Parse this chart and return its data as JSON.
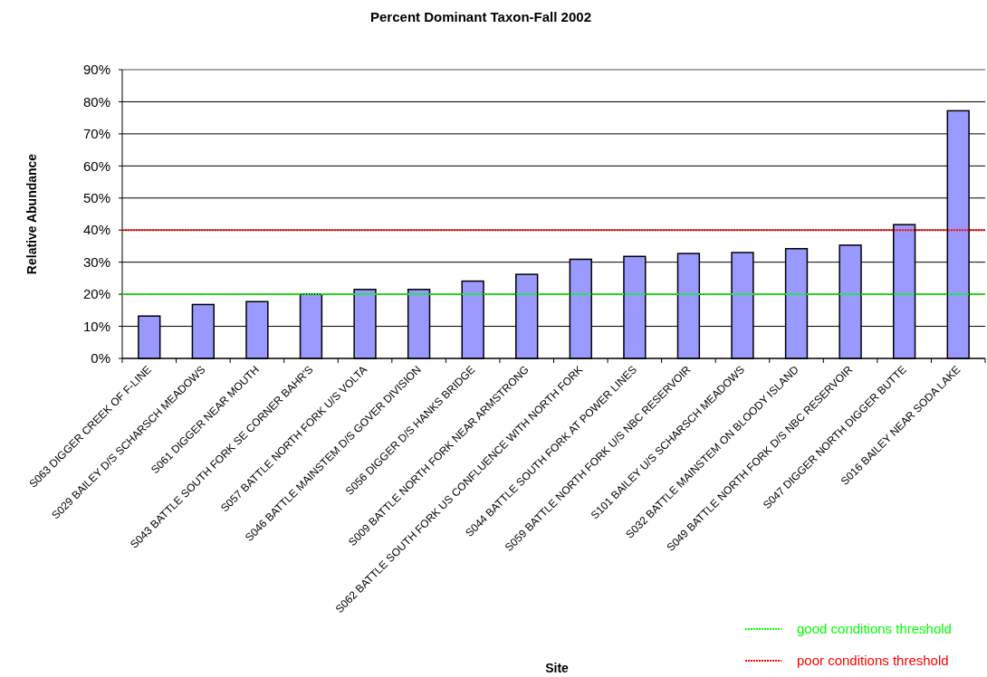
{
  "chart_data": {
    "type": "bar",
    "title": "Percent Dominant Taxon-Fall 2002",
    "xlabel": "Site",
    "ylabel": "Relative Abundance",
    "categories": [
      "S063 DIGGER CREEK OF F-LINE",
      "S029 BAILEY D/S SCHARSCH MEADOWS",
      "S061 DIGGER NEAR MOUTH",
      "S043 BATTLE SOUTH FORK SE CORNER BAHR'S",
      "S057 BATTLE NORTH FORK U/S VOLTA",
      "S046 BATTLE MAINSTEM D/S GOVER DIVISION",
      "S056 DIGGER D/S HANKS BRIDGE",
      "S009 BATTLE NORTH FORK NEAR ARMSTRONG",
      "S062 BATTLE SOUTH FORK US CONFLUENCE WITH NORTH FORK",
      "S044 BATTLE SOUTH FORK AT POWER LINES",
      "S059 BATTLE NORTH FORK U/S NBC RESERVOIR",
      "S101 BAILEY U/S SCHARSCH MEADOWS",
      "S032 BATTLE MAINSTEM ON BLOODY ISLAND",
      "S049 BATTLE NORTH FORK D/S NBC RESERVOIR",
      "S047 DIGGER NORTH DIGGER BUTTE",
      "S016 BAILEY NEAR SODA LAKE"
    ],
    "values": [
      13.2,
      16.8,
      17.7,
      20.0,
      21.5,
      21.5,
      24.1,
      26.2,
      30.9,
      31.8,
      32.7,
      33.0,
      34.2,
      35.3,
      41.7,
      77.2
    ],
    "color": "#9999ff",
    "ylim": [
      0,
      90
    ],
    "yticks": [
      {
        "value": 0,
        "label": "0%"
      },
      {
        "value": 10,
        "label": "10%"
      },
      {
        "value": 20,
        "label": "20%"
      },
      {
        "value": 30,
        "label": "30%"
      },
      {
        "value": 40,
        "label": "40%"
      },
      {
        "value": 50,
        "label": "50%"
      },
      {
        "value": 60,
        "label": "60%"
      },
      {
        "value": 70,
        "label": "70%"
      },
      {
        "value": 80,
        "label": "80%"
      },
      {
        "value": 90,
        "label": "90%"
      }
    ],
    "grid": "y",
    "legend": "bottom right",
    "ref_lines": [
      {
        "axis": "y",
        "value": 20,
        "label": "good conditions threshold",
        "color": "#00ff00",
        "line_style": "dotted"
      },
      {
        "axis": "y",
        "value": 40,
        "label": "poor conditions threshold",
        "color": "#ff0000",
        "line_style": "dotted"
      }
    ]
  }
}
